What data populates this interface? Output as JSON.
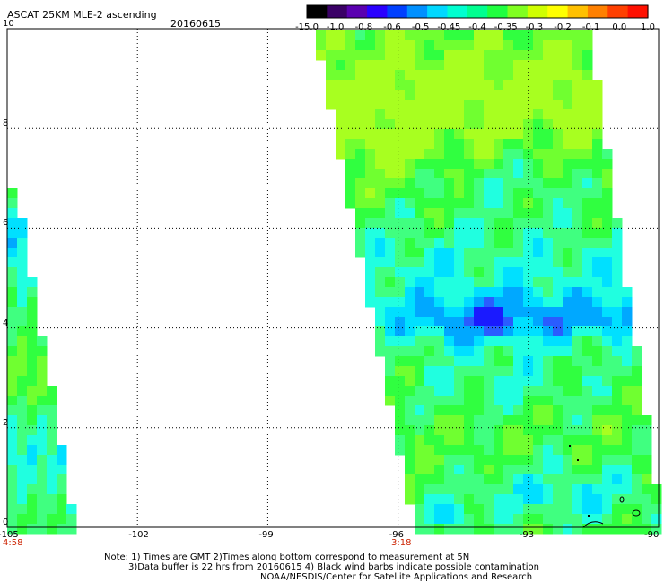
{
  "header": {
    "title": "ASCAT 25KM MLE-2 ascending",
    "date": "20160615"
  },
  "colorbar": {
    "labels": [
      "-15.0",
      "-1.0",
      "-0.8",
      "-0.6",
      "-0.5",
      "-0.45",
      "-0.4",
      "-0.35",
      "-0.3",
      "-0.2",
      "-0.1",
      "0.0",
      "1.0"
    ],
    "colors": [
      "#000000",
      "#3a0066",
      "#5a00b0",
      "#2a00ff",
      "#0040ff",
      "#0090ff",
      "#00d8ff",
      "#00ffd0",
      "#00ff90",
      "#20ff40",
      "#80ff20",
      "#d0ff00",
      "#ffff00",
      "#ffc000",
      "#ff8000",
      "#ff4000",
      "#ff1000"
    ]
  },
  "map": {
    "lon_range": [
      -105,
      -90
    ],
    "lat_range": [
      0,
      10
    ],
    "x_ticks": [
      "-105",
      "-102",
      "-99",
      "-96",
      "-93",
      "-90"
    ],
    "y_ticks": [
      "0",
      "2",
      "4",
      "6",
      "8",
      "10"
    ],
    "swath_times": [
      {
        "lon": -105,
        "time": "4:58"
      },
      {
        "lon": -96,
        "time": "3:18"
      }
    ]
  },
  "notes": {
    "line1": "Note: 1) Times are GMT 2)Times along bottom correspond to measurement at 5N",
    "line2": "3)Data buffer is 22 hrs from 20160615 4) Black wind barbs indicate possible contamination",
    "line3": "NOAA/NESDIS/Center for Satellite Applications and Research"
  }
}
